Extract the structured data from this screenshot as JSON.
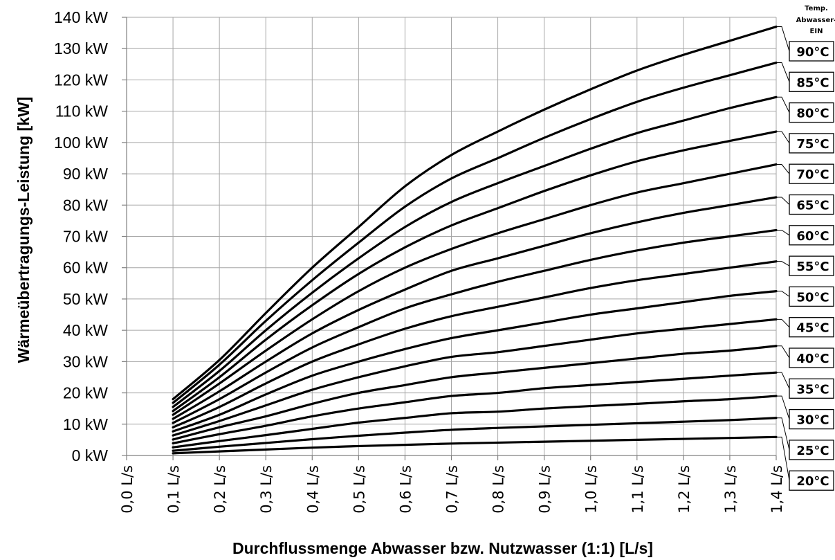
{
  "chart_data": {
    "type": "line",
    "title": "",
    "xlabel": "Durchflussmenge Abwasser bzw. Nutzwasser (1:1) [L/s]",
    "ylabel": "Wärmeübertragungs-Leistung [kW]",
    "xlim": [
      0.0,
      1.4
    ],
    "ylim": [
      0,
      140
    ],
    "grid": true,
    "x_ticks": [
      {
        "value": 0.0,
        "label": "0,0 L/s"
      },
      {
        "value": 0.1,
        "label": "0,1 L/s"
      },
      {
        "value": 0.2,
        "label": "0,2 L/s"
      },
      {
        "value": 0.3,
        "label": "0,3 L/s"
      },
      {
        "value": 0.4,
        "label": "0,4 L/s"
      },
      {
        "value": 0.5,
        "label": "0,5 L/s"
      },
      {
        "value": 0.6,
        "label": "0,6 L/s"
      },
      {
        "value": 0.7,
        "label": "0,7 L/s"
      },
      {
        "value": 0.8,
        "label": "0,8 L/s"
      },
      {
        "value": 0.9,
        "label": "0,9 L/s"
      },
      {
        "value": 1.0,
        "label": "1,0 L/s"
      },
      {
        "value": 1.1,
        "label": "1,1 L/s"
      },
      {
        "value": 1.2,
        "label": "1,2 L/s"
      },
      {
        "value": 1.3,
        "label": "1,3 L/s"
      },
      {
        "value": 1.4,
        "label": "1,4 L/s"
      }
    ],
    "y_ticks": [
      {
        "value": 0,
        "label": "0 kW"
      },
      {
        "value": 10,
        "label": "10 kW"
      },
      {
        "value": 20,
        "label": "20 kW"
      },
      {
        "value": 30,
        "label": "30 kW"
      },
      {
        "value": 40,
        "label": "40 kW"
      },
      {
        "value": 50,
        "label": "50 kW"
      },
      {
        "value": 60,
        "label": "60 kW"
      },
      {
        "value": 70,
        "label": "70 kW"
      },
      {
        "value": 80,
        "label": "80 kW"
      },
      {
        "value": 90,
        "label": "90 kW"
      },
      {
        "value": 100,
        "label": "100 kW"
      },
      {
        "value": 110,
        "label": "110 kW"
      },
      {
        "value": 120,
        "label": "120 kW"
      },
      {
        "value": 130,
        "label": "130 kW"
      },
      {
        "value": 140,
        "label": "140 kW"
      }
    ],
    "legend": {
      "title_lines": [
        "Temp.",
        "Abwasser-",
        "EIN"
      ],
      "placement": "right"
    },
    "x": [
      0.1,
      0.2,
      0.3,
      0.4,
      0.5,
      0.6,
      0.7,
      0.8,
      0.9,
      1.0,
      1.1,
      1.2,
      1.3,
      1.4
    ],
    "series": [
      {
        "name": "90°C",
        "values": [
          18,
          30.5,
          45.5,
          60,
          73,
          86,
          96,
          103.5,
          110.5,
          117,
          123,
          128,
          132.5,
          137
        ]
      },
      {
        "name": "85°C",
        "values": [
          16.8,
          29,
          43,
          56,
          68,
          79.5,
          88.5,
          95,
          101.5,
          107.5,
          113,
          117.5,
          121.5,
          125.5
        ]
      },
      {
        "name": "80°C",
        "values": [
          15.5,
          27,
          40,
          52,
          63,
          73,
          81,
          87,
          92.5,
          98,
          103,
          107,
          111,
          114.5
        ]
      },
      {
        "name": "75°C",
        "values": [
          14.2,
          25,
          37,
          48,
          58,
          66.5,
          73.5,
          79,
          84.5,
          89.5,
          94,
          97.5,
          100.5,
          103.5
        ]
      },
      {
        "name": "70°C",
        "values": [
          13,
          23,
          33.5,
          43.5,
          52.5,
          60,
          66,
          71,
          75.5,
          80,
          84,
          87,
          90,
          93
        ]
      },
      {
        "name": "65°C",
        "values": [
          11.7,
          20.5,
          30,
          39,
          46.5,
          53,
          59,
          63,
          67,
          71,
          74.5,
          77.5,
          80,
          82.5
        ]
      },
      {
        "name": "60°C",
        "values": [
          10.4,
          18,
          26.5,
          34.5,
          41,
          47,
          51.5,
          55.5,
          59,
          62.5,
          65.5,
          68,
          70,
          72
        ]
      },
      {
        "name": "55°C",
        "values": [
          9,
          15.5,
          23,
          30,
          35.5,
          40.5,
          44.5,
          47.5,
          50.5,
          53.5,
          56,
          58,
          60,
          62
        ]
      },
      {
        "name": "50°C",
        "values": [
          7.7,
          13,
          19.5,
          25.5,
          30,
          34,
          37.5,
          40,
          42.5,
          45,
          47,
          49,
          51,
          52.5
        ]
      },
      {
        "name": "45°C",
        "values": [
          6.4,
          11,
          16,
          21,
          25,
          28.5,
          31.5,
          33,
          35,
          37,
          39,
          40.5,
          42,
          43.5
        ]
      },
      {
        "name": "40°C",
        "values": [
          5.1,
          9,
          12.5,
          16.5,
          20,
          22.5,
          25,
          26.5,
          28,
          29.5,
          31,
          32.5,
          33.5,
          35
        ]
      },
      {
        "name": "35°C",
        "values": [
          3.9,
          6.8,
          9.5,
          12.5,
          15,
          17,
          19,
          20,
          21.5,
          22.5,
          23.5,
          24.5,
          25.5,
          26.5
        ]
      },
      {
        "name": "30°C",
        "values": [
          2.6,
          4.6,
          6.5,
          8.5,
          10.5,
          12,
          13.5,
          14,
          15,
          15.8,
          16.5,
          17.3,
          18,
          19
        ]
      },
      {
        "name": "25°C",
        "values": [
          1.5,
          2.8,
          4,
          5.2,
          6.3,
          7.3,
          8.2,
          8.8,
          9.3,
          9.8,
          10.3,
          10.8,
          11.3,
          12
        ]
      },
      {
        "name": "20°C",
        "values": [
          0.7,
          1.3,
          1.9,
          2.5,
          3,
          3.4,
          3.8,
          4.1,
          4.4,
          4.7,
          5,
          5.3,
          5.6,
          5.9
        ]
      }
    ]
  }
}
